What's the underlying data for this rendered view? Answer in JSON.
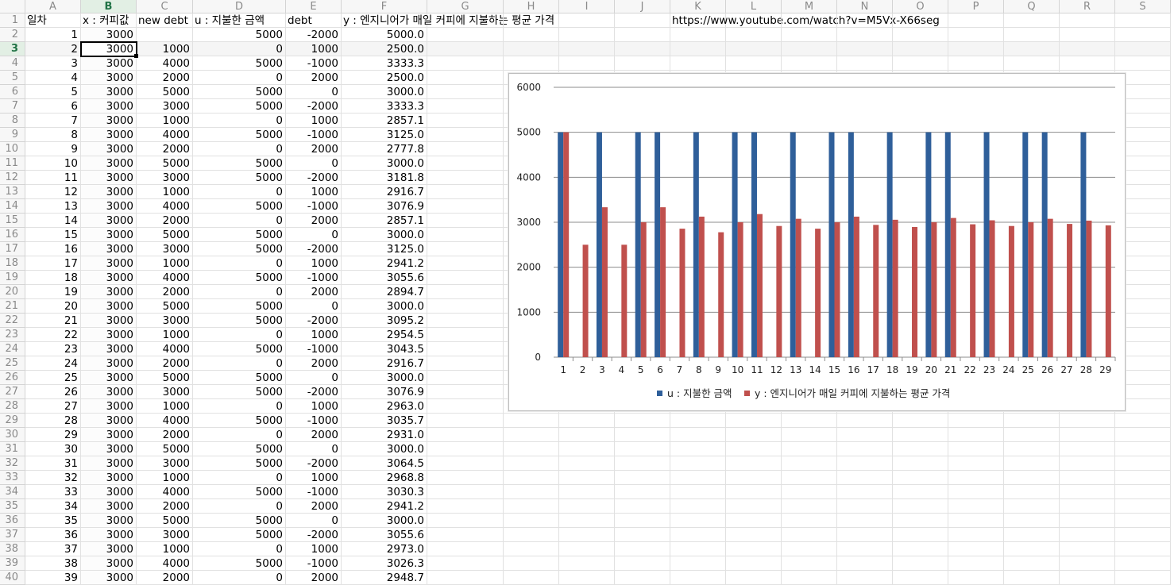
{
  "columns": [
    "A",
    "B",
    "C",
    "D",
    "E",
    "F",
    "G",
    "H",
    "I",
    "J",
    "K",
    "L",
    "M",
    "N",
    "O",
    "P",
    "Q",
    "R",
    "S"
  ],
  "selected_column": "B",
  "selected_row": 3,
  "header_row": [
    "일차",
    "x : 커피값",
    "new debt",
    "u : 지불한 금액",
    "debt",
    "y : 엔지니어가 매일 커피에 지불하는 평균 가격"
  ],
  "url_cell": "https://www.youtube.com/watch?v=M5Vx-X66seg",
  "rows": [
    [
      "1",
      "3000",
      "",
      "5000",
      "-2000",
      "5000.0"
    ],
    [
      "2",
      "3000",
      "1000",
      "0",
      "1000",
      "2500.0"
    ],
    [
      "3",
      "3000",
      "4000",
      "5000",
      "-1000",
      "3333.3"
    ],
    [
      "4",
      "3000",
      "2000",
      "0",
      "2000",
      "2500.0"
    ],
    [
      "5",
      "3000",
      "5000",
      "5000",
      "0",
      "3000.0"
    ],
    [
      "6",
      "3000",
      "3000",
      "5000",
      "-2000",
      "3333.3"
    ],
    [
      "7",
      "3000",
      "1000",
      "0",
      "1000",
      "2857.1"
    ],
    [
      "8",
      "3000",
      "4000",
      "5000",
      "-1000",
      "3125.0"
    ],
    [
      "9",
      "3000",
      "2000",
      "0",
      "2000",
      "2777.8"
    ],
    [
      "10",
      "3000",
      "5000",
      "5000",
      "0",
      "3000.0"
    ],
    [
      "11",
      "3000",
      "3000",
      "5000",
      "-2000",
      "3181.8"
    ],
    [
      "12",
      "3000",
      "1000",
      "0",
      "1000",
      "2916.7"
    ],
    [
      "13",
      "3000",
      "4000",
      "5000",
      "-1000",
      "3076.9"
    ],
    [
      "14",
      "3000",
      "2000",
      "0",
      "2000",
      "2857.1"
    ],
    [
      "15",
      "3000",
      "5000",
      "5000",
      "0",
      "3000.0"
    ],
    [
      "16",
      "3000",
      "3000",
      "5000",
      "-2000",
      "3125.0"
    ],
    [
      "17",
      "3000",
      "1000",
      "0",
      "1000",
      "2941.2"
    ],
    [
      "18",
      "3000",
      "4000",
      "5000",
      "-1000",
      "3055.6"
    ],
    [
      "19",
      "3000",
      "2000",
      "0",
      "2000",
      "2894.7"
    ],
    [
      "20",
      "3000",
      "5000",
      "5000",
      "0",
      "3000.0"
    ],
    [
      "21",
      "3000",
      "3000",
      "5000",
      "-2000",
      "3095.2"
    ],
    [
      "22",
      "3000",
      "1000",
      "0",
      "1000",
      "2954.5"
    ],
    [
      "23",
      "3000",
      "4000",
      "5000",
      "-1000",
      "3043.5"
    ],
    [
      "24",
      "3000",
      "2000",
      "0",
      "2000",
      "2916.7"
    ],
    [
      "25",
      "3000",
      "5000",
      "5000",
      "0",
      "3000.0"
    ],
    [
      "26",
      "3000",
      "3000",
      "5000",
      "-2000",
      "3076.9"
    ],
    [
      "27",
      "3000",
      "1000",
      "0",
      "1000",
      "2963.0"
    ],
    [
      "28",
      "3000",
      "4000",
      "5000",
      "-1000",
      "3035.7"
    ],
    [
      "29",
      "3000",
      "2000",
      "0",
      "2000",
      "2931.0"
    ],
    [
      "30",
      "3000",
      "5000",
      "5000",
      "0",
      "3000.0"
    ],
    [
      "31",
      "3000",
      "3000",
      "5000",
      "-2000",
      "3064.5"
    ],
    [
      "32",
      "3000",
      "1000",
      "0",
      "1000",
      "2968.8"
    ],
    [
      "33",
      "3000",
      "4000",
      "5000",
      "-1000",
      "3030.3"
    ],
    [
      "34",
      "3000",
      "2000",
      "0",
      "2000",
      "2941.2"
    ],
    [
      "35",
      "3000",
      "5000",
      "5000",
      "0",
      "3000.0"
    ],
    [
      "36",
      "3000",
      "3000",
      "5000",
      "-2000",
      "3055.6"
    ],
    [
      "37",
      "3000",
      "1000",
      "0",
      "1000",
      "2973.0"
    ],
    [
      "38",
      "3000",
      "4000",
      "5000",
      "-1000",
      "3026.3"
    ],
    [
      "39",
      "3000",
      "2000",
      "0",
      "2000",
      "2948.7"
    ]
  ],
  "chart_data": {
    "type": "bar",
    "categories": [
      "1",
      "2",
      "3",
      "4",
      "5",
      "6",
      "7",
      "8",
      "9",
      "10",
      "11",
      "12",
      "13",
      "14",
      "15",
      "16",
      "17",
      "18",
      "19",
      "20",
      "21",
      "22",
      "23",
      "24",
      "25",
      "26",
      "27",
      "28",
      "29"
    ],
    "series": [
      {
        "name": "u : 지불한 금액",
        "color": "#2f5f9a",
        "values": [
          5000,
          0,
          5000,
          0,
          5000,
          5000,
          0,
          5000,
          0,
          5000,
          5000,
          0,
          5000,
          0,
          5000,
          5000,
          0,
          5000,
          0,
          5000,
          5000,
          0,
          5000,
          0,
          5000,
          5000,
          0,
          5000,
          0
        ]
      },
      {
        "name": "y : 엔지니어가 매일 커피에 지불하는 평균 가격",
        "color": "#c0504d",
        "values": [
          5000,
          2500,
          3333.3,
          2500,
          3000,
          3333.3,
          2857.1,
          3125,
          2777.8,
          3000,
          3181.8,
          2916.7,
          3076.9,
          2857.1,
          3000,
          3125,
          2941.2,
          3055.6,
          2894.7,
          3000,
          3095.2,
          2954.5,
          3043.5,
          2916.7,
          3000,
          3076.9,
          2963,
          3035.7,
          2931
        ]
      }
    ],
    "y_ticks": [
      "0",
      "1000",
      "2000",
      "3000",
      "4000",
      "5000",
      "6000"
    ],
    "ylim": [
      0,
      6000
    ],
    "grid": true,
    "legend": "bottom"
  }
}
